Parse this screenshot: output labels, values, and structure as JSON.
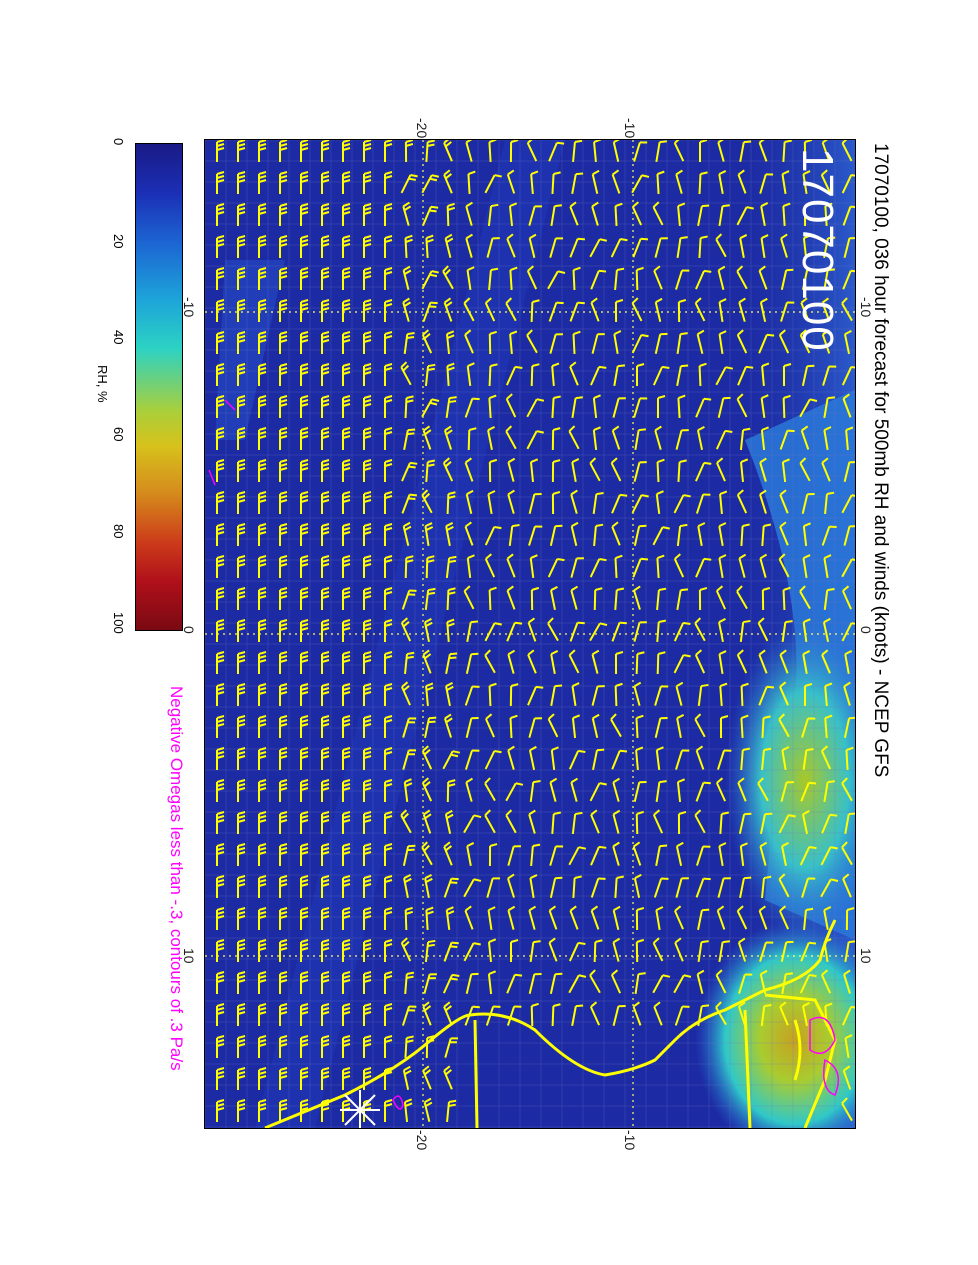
{
  "title": "17070100, 036 hour forecast for 500mb RH and winds (knots) - NCEP GFS",
  "datestamp": "17070100",
  "omega_note": "Negative Omegas less than -.3, contours of .3 Pa/s",
  "colorbar": {
    "label": "RH, %",
    "ticks": [
      "0",
      "20",
      "40",
      "60",
      "80",
      "100"
    ],
    "colors": [
      "#1a1a86",
      "#1c63d2",
      "#2cd2c4",
      "#d7c21c",
      "#cc3b1a",
      "#7a0a12"
    ]
  },
  "axes": {
    "top_lon_ticks": [
      "-20",
      "-10"
    ],
    "bottom_lon_ticks": [
      "-20",
      "-10"
    ],
    "left_lat_ticks": [
      "-10",
      "0",
      "10"
    ],
    "right_lat_ticks": [
      "-10",
      "0",
      "10"
    ]
  },
  "colors": {
    "ocean_background": "#1c2aa3",
    "barbs": "#ffff00",
    "coastline": "#ffff00",
    "omega_contours": "#ff00ff",
    "gridlines": "#ffff66"
  }
}
